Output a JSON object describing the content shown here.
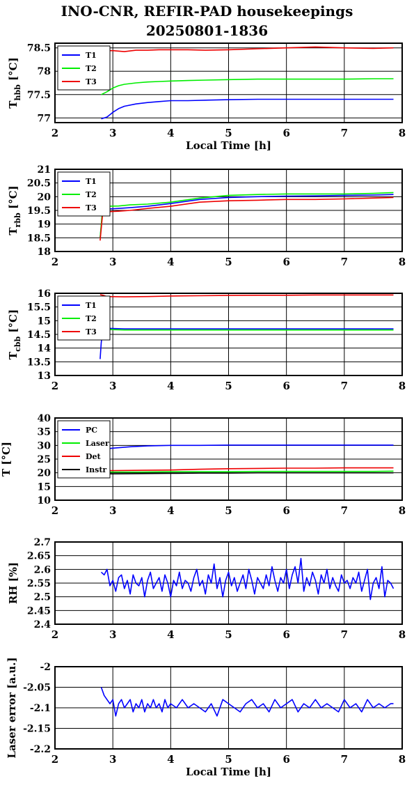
{
  "title_line1": "INO-CNR, REFIR-PAD housekeepings",
  "title_line2": "20250801-1836",
  "colors": {
    "blue": "#0000ff",
    "green": "#00ee00",
    "red": "#ee0000",
    "black": "#000000"
  },
  "chart_data": [
    {
      "type": "line",
      "ylabel": {
        "main": "T",
        "sub": "hbb",
        "unit": " [°C]"
      },
      "xlabel": "Local Time [h]",
      "xlim": [
        2,
        8
      ],
      "xticks": [
        "2",
        "3",
        "4",
        "5",
        "6",
        "7",
        "8"
      ],
      "ylim": [
        76.9,
        78.6
      ],
      "yticks": [
        "77",
        "77.5",
        "78",
        "78.5"
      ],
      "ytick_values": [
        77,
        77.5,
        78,
        78.5
      ],
      "grid": true,
      "legend_position": "top-left",
      "series": [
        {
          "name": "T1",
          "color": "#0000ff",
          "x": [
            2.8,
            2.9,
            3.0,
            3.1,
            3.2,
            3.4,
            3.6,
            3.8,
            4.0,
            4.3,
            4.6,
            5.0,
            5.5,
            6.0,
            6.5,
            7.0,
            7.5,
            7.85
          ],
          "y": [
            76.98,
            77.02,
            77.12,
            77.2,
            77.25,
            77.3,
            77.33,
            77.35,
            77.37,
            77.37,
            77.38,
            77.39,
            77.4,
            77.4,
            77.4,
            77.4,
            77.4,
            77.4
          ]
        },
        {
          "name": "T2",
          "color": "#00ee00",
          "x": [
            2.8,
            2.9,
            3.0,
            3.1,
            3.2,
            3.4,
            3.6,
            3.8,
            4.0,
            4.3,
            4.6,
            5.0,
            5.5,
            6.0,
            6.5,
            7.0,
            7.5,
            7.85
          ],
          "y": [
            77.5,
            77.56,
            77.64,
            77.69,
            77.72,
            77.75,
            77.77,
            77.78,
            77.79,
            77.8,
            77.81,
            77.82,
            77.83,
            77.83,
            77.83,
            77.83,
            77.84,
            77.84
          ]
        },
        {
          "name": "T3",
          "color": "#ee0000",
          "x": [
            2.8,
            3.0,
            3.2,
            3.4,
            3.6,
            3.8,
            4.0,
            4.3,
            4.6,
            5.0,
            5.5,
            6.0,
            6.5,
            7.0,
            7.5,
            7.85
          ],
          "y": [
            78.44,
            78.44,
            78.42,
            78.45,
            78.45,
            78.46,
            78.46,
            78.46,
            78.45,
            78.46,
            78.48,
            78.5,
            78.52,
            78.5,
            78.49,
            78.5
          ]
        }
      ]
    },
    {
      "type": "line",
      "ylabel": {
        "main": "T",
        "sub": "rbb",
        "unit": " [°C]"
      },
      "xlabel": "",
      "xlim": [
        2,
        8
      ],
      "xticks": [
        "2",
        "3",
        "4",
        "5",
        "6",
        "7",
        "8"
      ],
      "ylim": [
        18,
        21
      ],
      "yticks": [
        "18",
        "18.5",
        "19",
        "19.5",
        "20",
        "20.5",
        "21"
      ],
      "ytick_values": [
        18,
        18.5,
        19,
        19.5,
        20,
        20.5,
        21
      ],
      "grid": true,
      "legend_position": "top-left",
      "series": [
        {
          "name": "T1",
          "color": "#0000ff",
          "x": [
            2.78,
            2.82,
            2.9,
            3.1,
            3.3,
            3.6,
            4.0,
            4.5,
            5.0,
            5.5,
            6.0,
            6.5,
            7.0,
            7.5,
            7.85
          ],
          "y": [
            18.5,
            19.4,
            19.55,
            19.57,
            19.6,
            19.65,
            19.75,
            19.9,
            19.97,
            20.0,
            20.02,
            20.03,
            20.05,
            20.06,
            20.08
          ]
        },
        {
          "name": "T2",
          "color": "#00ee00",
          "x": [
            2.78,
            2.82,
            2.9,
            3.1,
            3.3,
            3.6,
            4.0,
            4.5,
            5.0,
            5.5,
            6.0,
            6.5,
            7.0,
            7.5,
            7.85
          ],
          "y": [
            18.5,
            19.5,
            19.65,
            19.66,
            19.7,
            19.73,
            19.8,
            19.95,
            20.05,
            20.08,
            20.1,
            20.1,
            20.1,
            20.12,
            20.15
          ]
        },
        {
          "name": "T3",
          "color": "#ee0000",
          "x": [
            2.78,
            2.82,
            2.9,
            3.1,
            3.3,
            3.6,
            4.0,
            4.5,
            5.0,
            5.5,
            6.0,
            6.5,
            7.0,
            7.5,
            7.85
          ],
          "y": [
            18.4,
            19.3,
            19.45,
            19.47,
            19.5,
            19.57,
            19.65,
            19.8,
            19.85,
            19.87,
            19.9,
            19.9,
            19.92,
            19.95,
            19.97
          ]
        }
      ]
    },
    {
      "type": "line",
      "ylabel": {
        "main": "T",
        "sub": "cbb",
        "unit": " [°C]"
      },
      "xlabel": "",
      "xlim": [
        2,
        8
      ],
      "xticks": [
        "2",
        "3",
        "4",
        "5",
        "6",
        "7",
        "8"
      ],
      "ylim": [
        13,
        16
      ],
      "yticks": [
        "13",
        "13.5",
        "14",
        "14.5",
        "15",
        "15.5",
        "16"
      ],
      "ytick_values": [
        13,
        13.5,
        14,
        14.5,
        15,
        15.5,
        16
      ],
      "grid": true,
      "legend_position": "top-left",
      "series": [
        {
          "name": "T1",
          "color": "#0000ff",
          "x": [
            2.78,
            2.8,
            2.83,
            2.9,
            3.2,
            3.6,
            4.0,
            4.5,
            5.0,
            5.5,
            6.0,
            6.5,
            7.0,
            7.5,
            7.85
          ],
          "y": [
            13.6,
            14.2,
            14.75,
            14.72,
            14.7,
            14.7,
            14.7,
            14.7,
            14.7,
            14.7,
            14.7,
            14.7,
            14.7,
            14.7,
            14.7
          ]
        },
        {
          "name": "T2",
          "color": "#00ee00",
          "x": [
            2.8,
            2.83,
            2.9,
            3.2,
            3.6,
            4.0,
            4.5,
            5.0,
            5.5,
            6.0,
            6.5,
            7.0,
            7.5,
            7.85
          ],
          "y": [
            14.45,
            14.7,
            14.68,
            14.66,
            14.66,
            14.66,
            14.66,
            14.66,
            14.66,
            14.66,
            14.66,
            14.66,
            14.66,
            14.66
          ]
        },
        {
          "name": "T3",
          "color": "#ee0000",
          "x": [
            2.78,
            2.83,
            2.9,
            3.2,
            3.6,
            4.0,
            4.5,
            5.0,
            5.5,
            6.0,
            6.5,
            7.0,
            7.5,
            7.85
          ],
          "y": [
            15.95,
            15.93,
            15.88,
            15.87,
            15.88,
            15.9,
            15.91,
            15.92,
            15.93,
            15.93,
            15.94,
            15.94,
            15.94,
            15.94
          ]
        }
      ]
    },
    {
      "type": "line",
      "ylabel": {
        "main": "T [°C]",
        "sub": "",
        "unit": ""
      },
      "xlabel": "",
      "xlim": [
        2,
        8
      ],
      "xticks": [
        "2",
        "3",
        "4",
        "5",
        "6",
        "7",
        "8"
      ],
      "ylim": [
        10,
        40
      ],
      "yticks": [
        "10",
        "15",
        "20",
        "25",
        "30",
        "35",
        "40"
      ],
      "ytick_values": [
        10,
        15,
        20,
        25,
        30,
        35,
        40
      ],
      "grid": true,
      "legend_position": "top-left",
      "series": [
        {
          "name": "PC",
          "color": "#0000ff",
          "x": [
            2.8,
            3.0,
            3.3,
            3.6,
            4.0,
            4.5,
            5.0,
            5.5,
            6.0,
            6.5,
            7.0,
            7.5,
            7.85
          ],
          "y": [
            28.5,
            29.0,
            29.5,
            29.8,
            30.0,
            30.0,
            30.1,
            30.1,
            30.1,
            30.1,
            30.1,
            30.1,
            30.1
          ]
        },
        {
          "name": "Laser",
          "color": "#00ee00",
          "x": [
            2.8,
            3.0,
            3.5,
            4.0,
            4.5,
            5.0,
            5.5,
            6.0,
            6.5,
            7.0,
            7.5,
            7.85
          ],
          "y": [
            20.3,
            20.3,
            20.3,
            20.4,
            20.4,
            20.4,
            20.5,
            20.5,
            20.5,
            20.5,
            20.5,
            20.6
          ]
        },
        {
          "name": "Det",
          "color": "#ee0000",
          "x": [
            2.8,
            3.0,
            3.5,
            4.0,
            4.5,
            5.0,
            5.5,
            6.0,
            6.5,
            7.0,
            7.5,
            7.85
          ],
          "y": [
            20.8,
            20.8,
            20.9,
            21.0,
            21.3,
            21.5,
            21.6,
            21.7,
            21.7,
            21.8,
            21.8,
            21.8
          ]
        },
        {
          "name": "Instr",
          "color": "#000000",
          "x": [
            2.8,
            3.0,
            3.5,
            4.0,
            4.5,
            5.0,
            5.5,
            6.0,
            6.5,
            7.0,
            7.5,
            7.85
          ],
          "y": [
            19.7,
            19.6,
            19.7,
            19.8,
            19.9,
            19.9,
            20.0,
            20.0,
            20.0,
            20.0,
            20.0,
            20.0
          ]
        }
      ]
    },
    {
      "type": "line",
      "ylabel": {
        "main": "RH [%]",
        "sub": "",
        "unit": ""
      },
      "xlabel": "",
      "xlim": [
        2,
        8
      ],
      "xticks": [
        "2",
        "3",
        "4",
        "5",
        "6",
        "7",
        "8"
      ],
      "ylim": [
        2.4,
        2.7
      ],
      "yticks": [
        "2.4",
        "2.45",
        "2.5",
        "2.55",
        "2.6",
        "2.65",
        "2.7"
      ],
      "ytick_values": [
        2.4,
        2.45,
        2.5,
        2.55,
        2.6,
        2.65,
        2.7
      ],
      "grid": true,
      "legend_position": "none",
      "series": [
        {
          "color": "#0000ff",
          "x": [
            2.8,
            2.85,
            2.9,
            2.95,
            3.0,
            3.05,
            3.1,
            3.15,
            3.2,
            3.25,
            3.3,
            3.35,
            3.4,
            3.45,
            3.5,
            3.55,
            3.6,
            3.65,
            3.7,
            3.75,
            3.8,
            3.85,
            3.9,
            3.95,
            4.0,
            4.05,
            4.1,
            4.15,
            4.2,
            4.25,
            4.3,
            4.35,
            4.4,
            4.45,
            4.5,
            4.55,
            4.6,
            4.65,
            4.7,
            4.75,
            4.8,
            4.85,
            4.9,
            4.95,
            5.0,
            5.05,
            5.1,
            5.15,
            5.2,
            5.25,
            5.3,
            5.35,
            5.4,
            5.45,
            5.5,
            5.55,
            5.6,
            5.65,
            5.7,
            5.75,
            5.8,
            5.85,
            5.9,
            5.95,
            6.0,
            6.05,
            6.1,
            6.15,
            6.2,
            6.25,
            6.3,
            6.35,
            6.4,
            6.45,
            6.5,
            6.55,
            6.6,
            6.65,
            6.7,
            6.75,
            6.8,
            6.85,
            6.9,
            6.95,
            7.0,
            7.05,
            7.1,
            7.15,
            7.2,
            7.25,
            7.3,
            7.35,
            7.4,
            7.45,
            7.5,
            7.55,
            7.6,
            7.65,
            7.7,
            7.75,
            7.8,
            7.85
          ],
          "y": [
            2.59,
            2.58,
            2.6,
            2.54,
            2.56,
            2.52,
            2.57,
            2.58,
            2.53,
            2.56,
            2.51,
            2.58,
            2.55,
            2.54,
            2.57,
            2.5,
            2.56,
            2.59,
            2.53,
            2.55,
            2.57,
            2.52,
            2.58,
            2.55,
            2.5,
            2.56,
            2.54,
            2.59,
            2.53,
            2.56,
            2.55,
            2.52,
            2.57,
            2.6,
            2.54,
            2.56,
            2.51,
            2.58,
            2.55,
            2.62,
            2.53,
            2.57,
            2.5,
            2.56,
            2.59,
            2.54,
            2.57,
            2.52,
            2.55,
            2.58,
            2.53,
            2.6,
            2.56,
            2.51,
            2.57,
            2.55,
            2.53,
            2.58,
            2.54,
            2.61,
            2.56,
            2.52,
            2.57,
            2.55,
            2.6,
            2.53,
            2.58,
            2.61,
            2.55,
            2.64,
            2.52,
            2.57,
            2.54,
            2.59,
            2.56,
            2.51,
            2.58,
            2.55,
            2.6,
            2.53,
            2.57,
            2.54,
            2.52,
            2.58,
            2.55,
            2.56,
            2.53,
            2.57,
            2.55,
            2.59,
            2.52,
            2.56,
            2.6,
            2.49,
            2.55,
            2.57,
            2.53,
            2.61,
            2.5,
            2.56,
            2.55,
            2.53
          ]
        }
      ]
    },
    {
      "type": "line",
      "ylabel": {
        "main": "Laser error [a.u.]",
        "sub": "",
        "unit": ""
      },
      "xlabel": "Local Time [h]",
      "xlim": [
        2,
        8
      ],
      "xticks": [
        "2",
        "3",
        "4",
        "5",
        "6",
        "7",
        "8"
      ],
      "ylim": [
        -2.2,
        -2.0
      ],
      "yticks": [
        "-2.2",
        "-2.15",
        "-2.1",
        "-2.05",
        "-2"
      ],
      "ytick_values": [
        -2.2,
        -2.15,
        -2.1,
        -2.05,
        -2.0
      ],
      "grid": true,
      "legend_position": "none",
      "series": [
        {
          "color": "#0000ff",
          "x": [
            2.8,
            2.85,
            2.9,
            2.95,
            3.0,
            3.05,
            3.1,
            3.15,
            3.2,
            3.25,
            3.3,
            3.35,
            3.4,
            3.45,
            3.5,
            3.55,
            3.6,
            3.65,
            3.7,
            3.75,
            3.8,
            3.85,
            3.9,
            3.95,
            4.0,
            4.1,
            4.2,
            4.3,
            4.4,
            4.5,
            4.6,
            4.7,
            4.8,
            4.9,
            5.0,
            5.1,
            5.2,
            5.3,
            5.4,
            5.5,
            5.6,
            5.7,
            5.8,
            5.9,
            6.0,
            6.1,
            6.2,
            6.3,
            6.4,
            6.5,
            6.6,
            6.7,
            6.8,
            6.9,
            7.0,
            7.1,
            7.2,
            7.3,
            7.4,
            7.5,
            7.6,
            7.7,
            7.8,
            7.85
          ],
          "y": [
            -2.05,
            -2.07,
            -2.08,
            -2.09,
            -2.08,
            -2.12,
            -2.09,
            -2.08,
            -2.1,
            -2.09,
            -2.08,
            -2.11,
            -2.09,
            -2.1,
            -2.08,
            -2.11,
            -2.09,
            -2.1,
            -2.08,
            -2.1,
            -2.09,
            -2.11,
            -2.08,
            -2.1,
            -2.09,
            -2.1,
            -2.08,
            -2.1,
            -2.09,
            -2.1,
            -2.11,
            -2.09,
            -2.12,
            -2.08,
            -2.09,
            -2.1,
            -2.11,
            -2.09,
            -2.08,
            -2.1,
            -2.09,
            -2.11,
            -2.08,
            -2.1,
            -2.09,
            -2.08,
            -2.11,
            -2.09,
            -2.1,
            -2.08,
            -2.1,
            -2.09,
            -2.1,
            -2.11,
            -2.08,
            -2.1,
            -2.09,
            -2.11,
            -2.08,
            -2.1,
            -2.09,
            -2.1,
            -2.09,
            -2.09
          ]
        }
      ]
    }
  ]
}
